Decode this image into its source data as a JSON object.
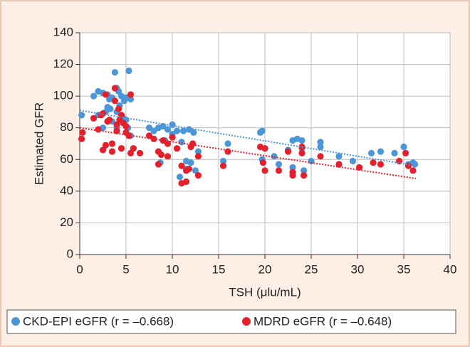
{
  "chart_data": {
    "type": "scatter",
    "x_label": "TSH (μlu/mL)",
    "y_label": "Estimated GFR",
    "xlim": [
      0,
      40
    ],
    "xticks": [
      0,
      5,
      10,
      15,
      20,
      25,
      30,
      35,
      40
    ],
    "ylim": [
      0,
      140
    ],
    "yticks": [
      0,
      20,
      40,
      60,
      80,
      100,
      120,
      140
    ],
    "grid": true,
    "legend": "bottom",
    "series": [
      {
        "name": "CKD-EPI eGFR (r = –0.668)",
        "color": "#4a96d6",
        "x": [
          0.2,
          1.5,
          2,
          2.5,
          3,
          3.2,
          3.5,
          3.8,
          4,
          4.2,
          4.5,
          4.8,
          5,
          5.3,
          5.5,
          2.8,
          3,
          3.3,
          4,
          4.3,
          4.6,
          5,
          2,
          2.5,
          3.5,
          4,
          5.2,
          5.5,
          7.5,
          8,
          8.5,
          9,
          9.5,
          10,
          10,
          10.5,
          11.2,
          11.8,
          12.3,
          8.5,
          8.7,
          9.2,
          11,
          11.5,
          12,
          12.5,
          12.8,
          10.8,
          11.5,
          15.5,
          16,
          19.5,
          19.7,
          19.7,
          20,
          21,
          21.5,
          22.5,
          23,
          23.5,
          23,
          24,
          24,
          24.2,
          25,
          26,
          26,
          28,
          29.5,
          31.5,
          32.5,
          34,
          35,
          35.5,
          36,
          36.2
        ],
        "values": [
          88,
          100,
          103,
          102,
          101,
          98,
          99,
          115,
          105,
          103,
          100,
          97,
          99,
          116,
          98,
          90,
          93,
          92,
          90,
          94,
          87,
          85,
          88,
          80,
          84,
          80,
          80,
          75,
          80,
          78,
          80,
          81,
          79,
          82,
          76,
          78,
          78,
          79,
          77,
          65,
          58,
          72,
          71,
          59,
          58,
          53,
          65,
          49,
          54,
          59,
          70,
          77,
          78,
          60,
          67,
          62,
          57,
          66,
          72,
          73,
          55,
          72,
          67,
          53,
          59,
          71,
          68,
          62,
          59,
          64,
          65,
          64,
          68,
          57,
          58,
          57
        ],
        "trend": {
          "x": [
            0,
            36.3
          ],
          "values": [
            91,
            56
          ]
        }
      },
      {
        "name": "MDRD eGFR (r = –0.648)",
        "color": "#e3202b",
        "x": [
          0.2,
          0.3,
          1.5,
          2,
          2.3,
          2.5,
          2.8,
          2.5,
          2.8,
          3,
          3.2,
          3.5,
          3.5,
          3.8,
          3.8,
          4,
          4,
          4.2,
          4.3,
          4.5,
          4.5,
          4.7,
          5,
          5,
          5.3,
          5.5,
          5.5,
          5.8,
          6.5,
          7.5,
          8,
          8.5,
          8.5,
          8.8,
          9,
          9.5,
          9.5,
          10,
          10.5,
          11,
          11,
          11.5,
          11.5,
          11.8,
          12,
          12.2,
          12.8,
          12.8,
          15.5,
          16,
          19.5,
          19.8,
          20,
          20,
          21.5,
          22.5,
          23,
          23,
          24,
          24,
          24.2,
          26,
          28,
          30.2,
          31.7,
          32.5,
          34.5,
          35.2,
          35.5,
          36
        ],
        "values": [
          73,
          77,
          86,
          79,
          88,
          89,
          69,
          66,
          101,
          84,
          85,
          65,
          70,
          105,
          97,
          78,
          82,
          92,
          85,
          88,
          67,
          83,
          77,
          81,
          75,
          64,
          101,
          67,
          64,
          75,
          73,
          65,
          57,
          63,
          72,
          70,
          62,
          74,
          67,
          56,
          45,
          53,
          46,
          54,
          68,
          70,
          62,
          50,
          56,
          65,
          68,
          58,
          67,
          53,
          53,
          65,
          52,
          50,
          68,
          64,
          50,
          62,
          57,
          55,
          58,
          57,
          59,
          64,
          56,
          53
        ],
        "trend": {
          "x": [
            0,
            36.3
          ],
          "values": [
            80,
            48
          ]
        }
      }
    ]
  }
}
